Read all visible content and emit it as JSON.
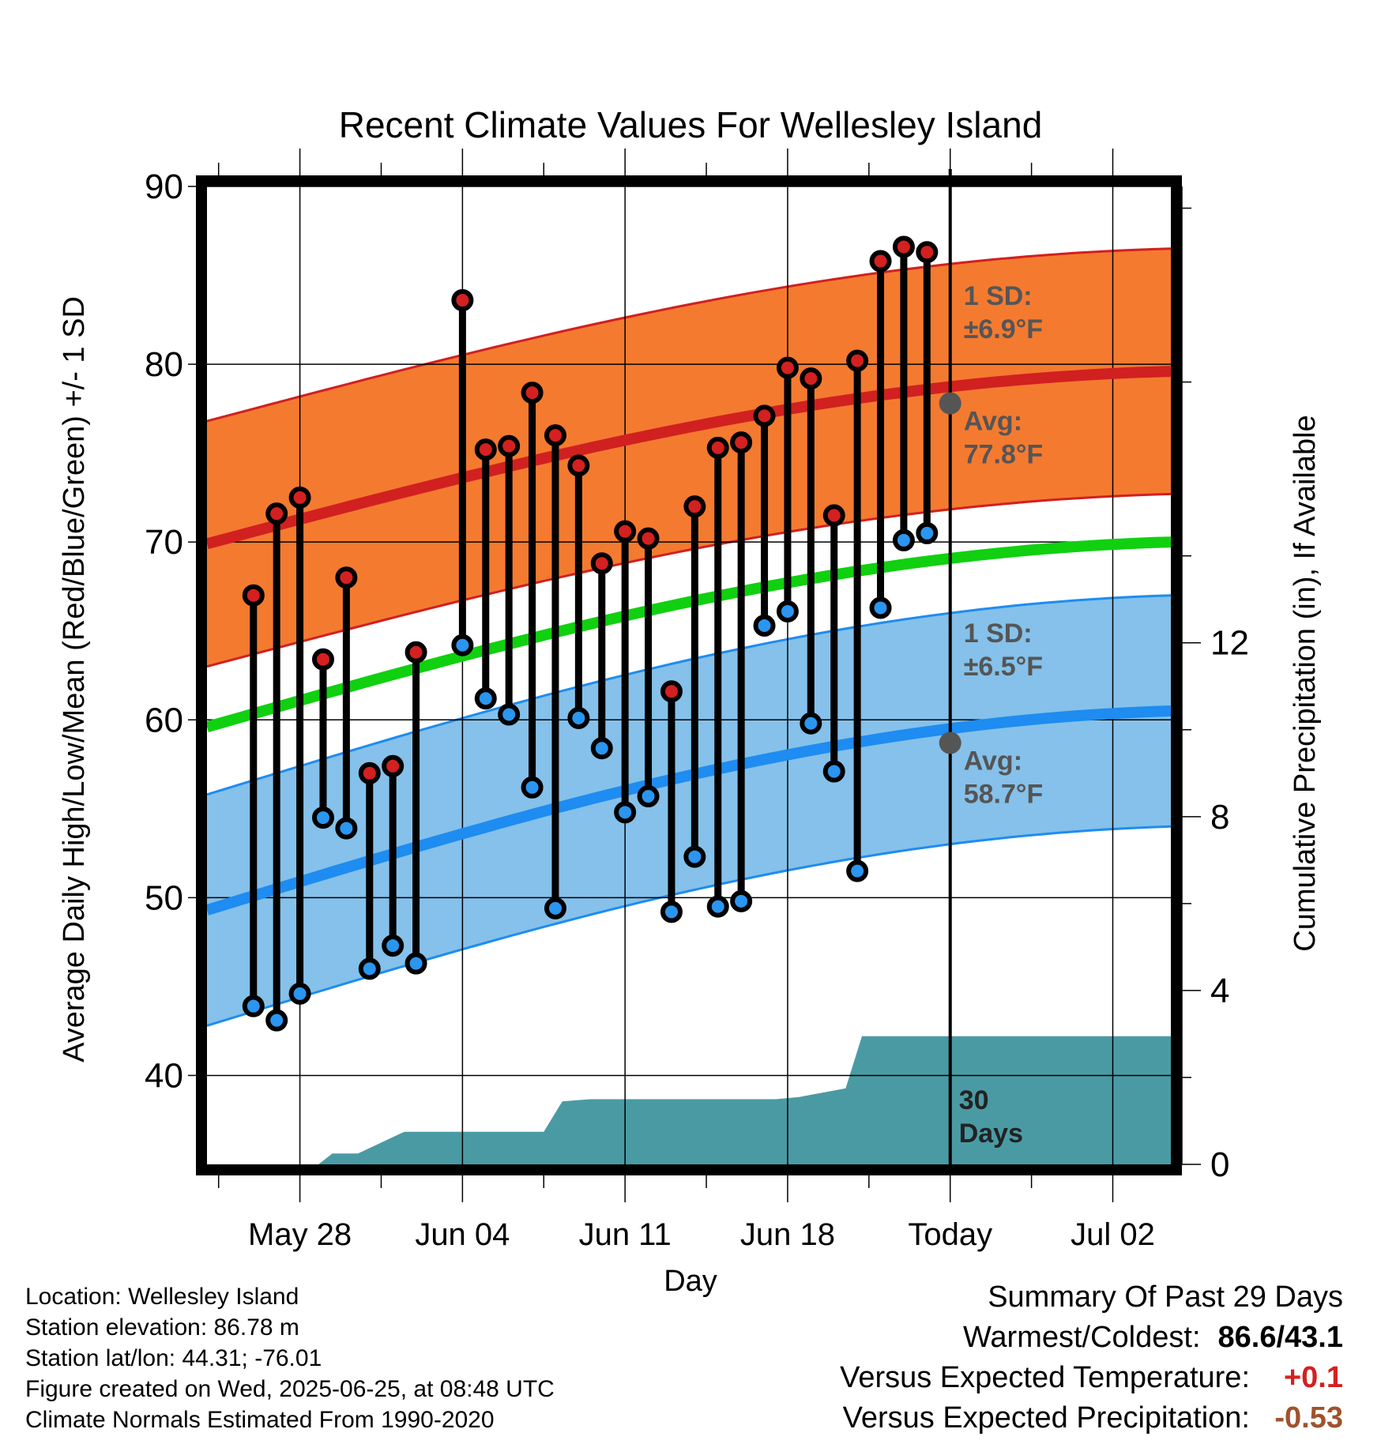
{
  "chart_data": {
    "type": "line",
    "title": "Recent Climate Values For Wellesley Island",
    "xlabel": "Day",
    "ylabel": "Average Daily High/Low/Mean (Red/Blue/Green) +/- 1 SD",
    "y2label": "Cumulative Precipitation (in), If Available",
    "ylim": [
      35,
      90
    ],
    "y2lim": [
      0,
      22.5
    ],
    "yticks": [
      "40",
      "50",
      "60",
      "70",
      "80",
      "90"
    ],
    "y2ticks": [
      "0",
      "4",
      "8",
      "12"
    ],
    "xticks": [
      "May 28",
      "Jun 04",
      "Jun 11",
      "Jun 18",
      "Today",
      "Jul 02"
    ],
    "x_start_day_index": -1,
    "x_end_day_index": 40.5,
    "xtick_day_index": [
      3,
      10,
      17,
      24,
      31,
      38
    ],
    "today_day_index": 31,
    "days_index": [
      1,
      2,
      3,
      4,
      5,
      6,
      7,
      8,
      9,
      10,
      11,
      12,
      13,
      14,
      15,
      16,
      17,
      18,
      19,
      20,
      21,
      22,
      23,
      24,
      25,
      26,
      27,
      28,
      29,
      30
    ],
    "highs": [
      67.0,
      71.6,
      72.5,
      63.4,
      68.0,
      57.0,
      57.4,
      63.8,
      null,
      83.6,
      75.2,
      75.4,
      78.4,
      76.0,
      74.3,
      68.8,
      70.6,
      70.2,
      61.6,
      72.0,
      75.3,
      75.6,
      77.1,
      79.8,
      79.2,
      71.5,
      80.2,
      85.8,
      86.6,
      86.3
    ],
    "lows": [
      43.9,
      43.1,
      44.6,
      54.5,
      53.9,
      46.0,
      47.3,
      46.3,
      null,
      64.2,
      61.2,
      60.3,
      56.2,
      49.4,
      60.1,
      58.4,
      54.8,
      55.7,
      49.2,
      52.3,
      49.5,
      49.8,
      65.3,
      66.1,
      59.8,
      57.1,
      51.5,
      66.3,
      70.1,
      70.5
    ],
    "normal_high": {
      "start": 69.9,
      "end": 79.6
    },
    "normal_low": {
      "start": 49.3,
      "end": 60.5
    },
    "normal_mean": {
      "start": 59.6,
      "end": 70.0
    },
    "sd_high": 6.9,
    "sd_low": 6.5,
    "precip_x": [
      2.5,
      3.8,
      4.4,
      5.5,
      7.5,
      9.5,
      11.5,
      12.5,
      13.5,
      14.3,
      15.5,
      17.5,
      19.5,
      21.5,
      23.5,
      24.5,
      25.5,
      26.5,
      27.2,
      28.5,
      31,
      40.5
    ],
    "precip_y": [
      0.0,
      0.0,
      0.25,
      0.25,
      0.75,
      0.75,
      0.75,
      0.75,
      0.75,
      1.45,
      1.5,
      1.5,
      1.5,
      1.5,
      1.5,
      1.55,
      1.65,
      1.75,
      2.95,
      2.95,
      2.95,
      2.95
    ],
    "colors": {
      "high_band": "#f47a30",
      "high_line": "#d12020",
      "low_band": "#85c1ea",
      "low_line": "#1e8cf0",
      "mean_line": "#10d010",
      "precip": "#4a9aa4",
      "high_dot": "#d42020",
      "low_dot": "#2a96f0",
      "annot": "#555555"
    },
    "annotations": {
      "sd_high_label": "1 SD:",
      "sd_high_value": "±6.9°F",
      "avg_high_label": "Avg:",
      "avg_high_value": "77.8°F",
      "avg_high_y": 77.8,
      "sd_low_label": "1 SD:",
      "sd_low_value": "±6.5°F",
      "avg_low_label": "Avg:",
      "avg_low_value": "58.7°F",
      "avg_low_y": 58.7,
      "days_label_1": "30",
      "days_label_2": "Days"
    }
  },
  "info": {
    "location": "Location: Wellesley Island",
    "elevation": "Station elevation: 86.78 m",
    "latlon": "Station lat/lon: 44.31; -76.01",
    "created": "Figure created on Wed, 2025-06-25, at 08:48 UTC",
    "normals": "Climate Normals Estimated From 1990-2020"
  },
  "summary": {
    "title": "Summary Of Past 29 Days",
    "warm_cold_label": "Warmest/Coldest:",
    "warm_cold_value": "86.6/43.1",
    "temp_label": "Versus Expected Temperature:",
    "temp_value": "+0.1",
    "temp_color": "#d42020",
    "precip_label": "Versus Expected Precipitation:",
    "precip_value": "-0.53",
    "precip_color": "#a0522d"
  }
}
